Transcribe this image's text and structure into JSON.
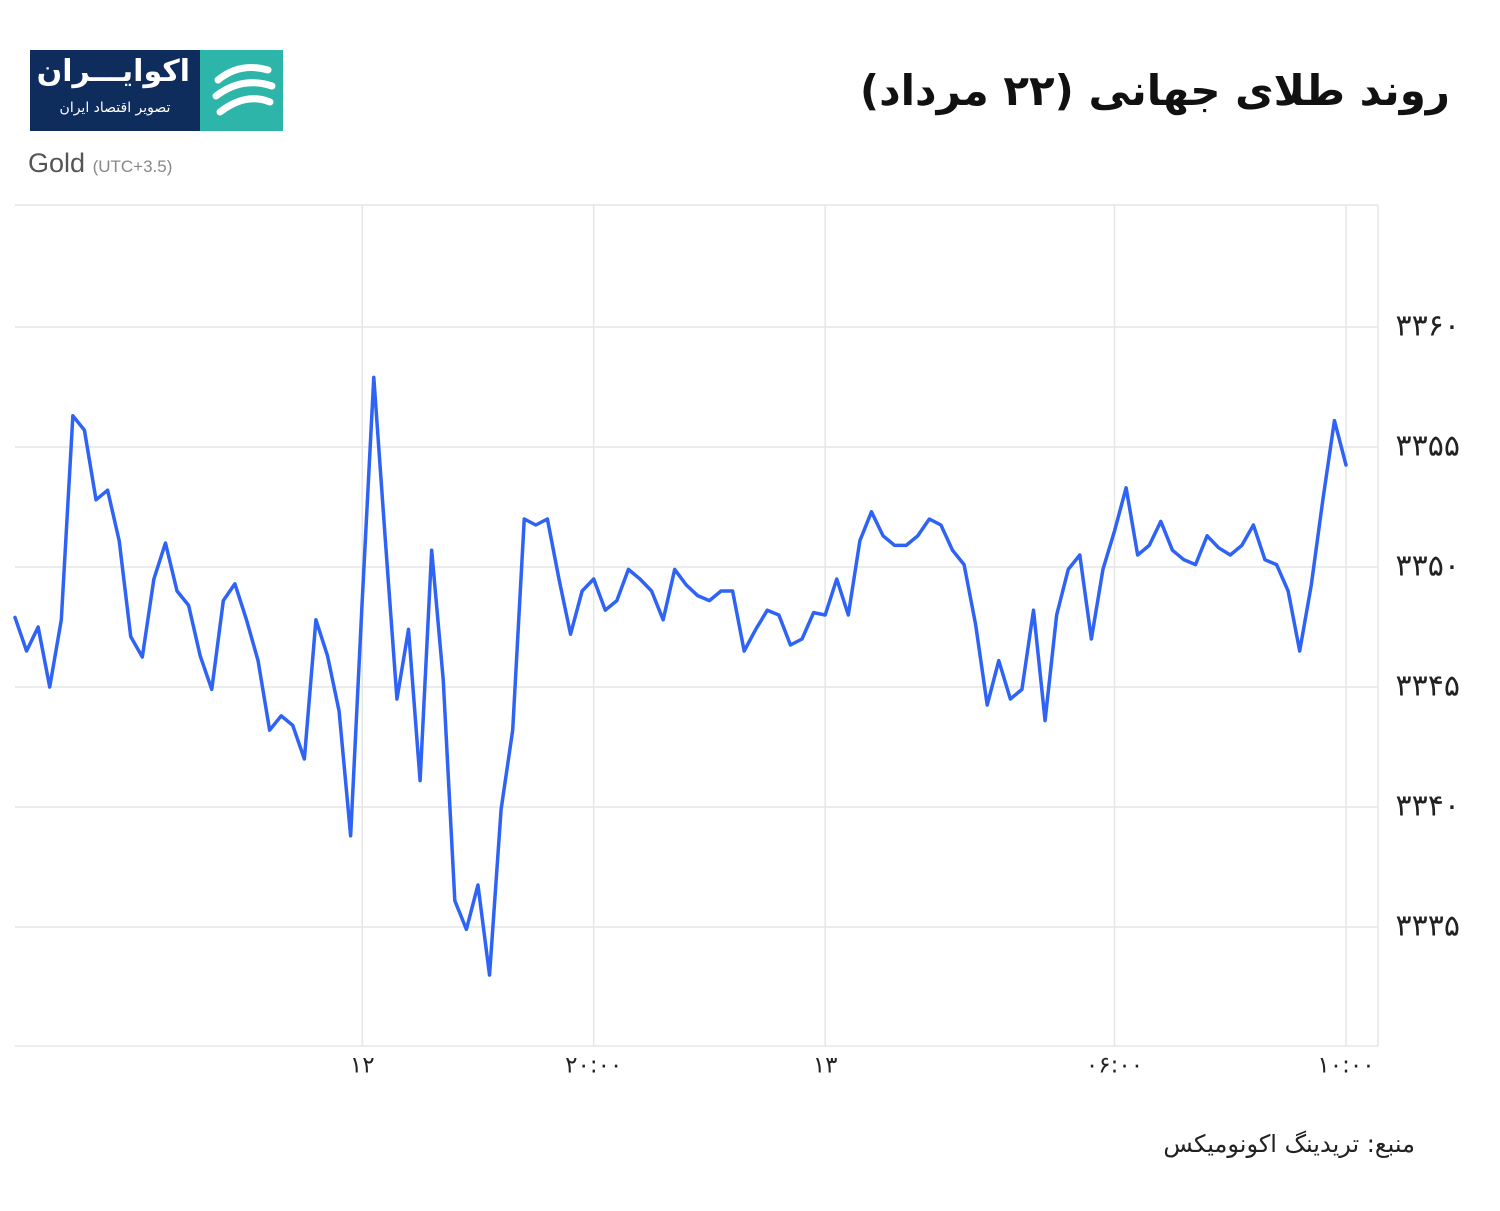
{
  "brand": {
    "name": "اکوایـــران",
    "tagline": "تصویر اقتصاد ایران"
  },
  "chart_data": {
    "type": "line",
    "title": "روند طلای جهانی (۲۲ مرداد)",
    "subtitle": "Gold",
    "note": "(UTC+3.5)",
    "source": "منبع: تریدینگ اکونومیکس",
    "color": "#2e63f5",
    "grid": true,
    "categories": [
      null,
      null,
      null,
      null,
      null,
      null,
      null,
      null,
      null,
      null,
      null,
      null,
      null,
      null,
      null,
      null,
      null,
      null,
      null,
      null,
      null,
      null,
      null,
      null,
      null,
      null,
      null,
      null,
      null,
      null,
      "۱۲",
      null,
      null,
      null,
      null,
      null,
      null,
      null,
      null,
      null,
      null,
      null,
      null,
      null,
      null,
      null,
      null,
      null,
      null,
      null,
      "۲۰:۰۰",
      null,
      null,
      null,
      null,
      null,
      null,
      null,
      null,
      null,
      null,
      null,
      null,
      null,
      null,
      null,
      null,
      null,
      null,
      null,
      "۱۳",
      null,
      null,
      null,
      null,
      null,
      null,
      null,
      null,
      null,
      null,
      null,
      null,
      null,
      null,
      null,
      null,
      null,
      null,
      null,
      null,
      null,
      null,
      null,
      null,
      "۰۶:۰۰",
      null,
      null,
      null,
      null,
      null,
      null,
      null,
      null,
      null,
      null,
      null,
      null,
      null,
      null,
      null,
      null,
      null,
      null,
      null,
      "۱۰:۰۰"
    ],
    "values": [
      3347.9,
      3346.5,
      3347.5,
      3345,
      3347.8,
      3356.3,
      3355.7,
      3352.8,
      3353.2,
      3351.1,
      3347.1,
      3346.25,
      3349.5,
      3351,
      3349,
      3348.4,
      3346.3,
      3344.9,
      3348.6,
      3349.3,
      3347.8,
      3346.1,
      3343.2,
      3343.8,
      3343.4,
      3342,
      3347.8,
      3346.3,
      3344,
      3338.8,
      3348.6,
      3357.9,
      3351.1,
      3344.5,
      3347.4,
      3341.1,
      3350.7,
      3345.3,
      3336.1,
      3334.9,
      3336.75,
      3333,
      3339.9,
      3343.2,
      3352,
      3351.75,
      3352,
      3349.5,
      3347.2,
      3349,
      3349.5,
      3348.2,
      3348.6,
      3349.9,
      3349.5,
      3349,
      3347.8,
      3349.9,
      3349.25,
      3348.8,
      3348.6,
      3349,
      3349,
      3346.5,
      3347.4,
      3348.2,
      3348,
      3346.75,
      3347,
      3348.1,
      3348,
      3349.5,
      3348,
      3351.1,
      3352.3,
      3351.3,
      3350.9,
      3350.9,
      3351.3,
      3352,
      3351.75,
      3350.7,
      3350.1,
      3347.6,
      3344.25,
      3346.1,
      3344.5,
      3344.9,
      3348.2,
      3343.6,
      3348,
      3349.9,
      3350.5,
      3347,
      3349.9,
      3351.5,
      3353.3,
      3350.5,
      3350.9,
      3351.9,
      3350.7,
      3350.3,
      3350.1,
      3351.3,
      3350.8,
      3350.5,
      3350.9,
      3351.75,
      3350.3,
      3350.1,
      3349,
      3346.5,
      3349.25,
      3352.8,
      3356.1,
      3354.25
    ],
    "ylim": [
      3330,
      3365
    ],
    "yticks": [
      {
        "value": 3335,
        "label": "۳۳۳۵"
      },
      {
        "value": 3340,
        "label": "۳۳۴۰"
      },
      {
        "value": 3345,
        "label": "۳۳۴۵"
      },
      {
        "value": 3350,
        "label": "۳۳۵۰"
      },
      {
        "value": 3355,
        "label": "۳۳۵۵"
      },
      {
        "value": 3360,
        "label": "۳۳۶۰"
      }
    ]
  }
}
